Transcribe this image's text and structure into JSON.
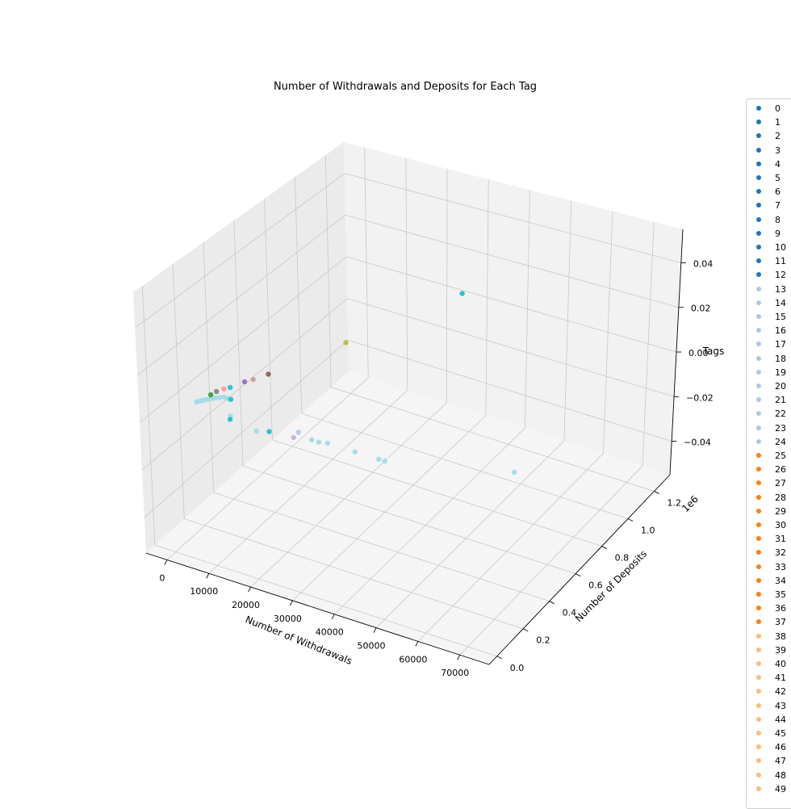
{
  "chart_data": {
    "type": "scatter",
    "projection": "3d",
    "title": "Number of Withdrawals and Deposits for Each Tag",
    "xlabel": "Number of Withdrawals",
    "ylabel": "Number of Deposits",
    "zlabel": "Tags",
    "y_offset_label": "1e6",
    "xlim": [
      -5000,
      77000
    ],
    "ylim": [
      -0.06,
      1.32
    ],
    "zlim": [
      -0.055,
      0.055
    ],
    "x_ticks": [
      "0",
      "10000",
      "20000",
      "30000",
      "40000",
      "50000",
      "60000",
      "70000"
    ],
    "y_ticks": [
      "0.0",
      "0.2",
      "0.4",
      "0.6",
      "0.8",
      "1.0",
      "1.2"
    ],
    "z_ticks": [
      "0.04",
      "0.02",
      "0.00",
      "−0.02",
      "−0.04"
    ],
    "grid": true,
    "legend_position": "right",
    "legend": {
      "labels": [
        "0",
        "1",
        "2",
        "3",
        "4",
        "5",
        "6",
        "7",
        "8",
        "9",
        "10",
        "11",
        "12",
        "13",
        "14",
        "15",
        "16",
        "17",
        "18",
        "19",
        "20",
        "21",
        "22",
        "23",
        "24",
        "25",
        "26",
        "27",
        "28",
        "29",
        "30",
        "31",
        "32",
        "33",
        "34",
        "35",
        "36",
        "37",
        "38",
        "39",
        "40",
        "41",
        "42",
        "43",
        "44",
        "45",
        "46",
        "47",
        "48",
        "49"
      ],
      "colors": [
        "#1f77b4",
        "#1f77b4",
        "#1f77b4",
        "#1f77b4",
        "#1f77b4",
        "#1f77b4",
        "#1f77b4",
        "#1f77b4",
        "#1f77b4",
        "#1f77b4",
        "#1f77b4",
        "#1f77b4",
        "#1f77b4",
        "#aec7e8",
        "#aec7e8",
        "#aec7e8",
        "#aec7e8",
        "#aec7e8",
        "#aec7e8",
        "#aec7e8",
        "#aec7e8",
        "#aec7e8",
        "#aec7e8",
        "#aec7e8",
        "#aec7e8",
        "#ff7f0e",
        "#ff7f0e",
        "#ff7f0e",
        "#ff7f0e",
        "#ff7f0e",
        "#ff7f0e",
        "#ff7f0e",
        "#ff7f0e",
        "#ff7f0e",
        "#ff7f0e",
        "#ff7f0e",
        "#ff7f0e",
        "#ff7f0e",
        "#ffbb78",
        "#ffbb78",
        "#ffbb78",
        "#ffbb78",
        "#ffbb78",
        "#ffbb78",
        "#ffbb78",
        "#ffbb78",
        "#ffbb78",
        "#ffbb78",
        "#ffbb78",
        "#ffbb78"
      ]
    },
    "points": [
      {
        "x": 300,
        "y": 0.17,
        "z": 0,
        "color": "#9edae5"
      },
      {
        "x": 600,
        "y": 0.18,
        "z": 0,
        "color": "#9edae5"
      },
      {
        "x": 900,
        "y": 0.19,
        "z": 0,
        "color": "#9edae5"
      },
      {
        "x": 1300,
        "y": 0.2,
        "z": 0,
        "color": "#9edae5"
      },
      {
        "x": 1700,
        "y": 0.21,
        "z": 0,
        "color": "#9edae5"
      },
      {
        "x": 2200,
        "y": 0.22,
        "z": 0,
        "color": "#9edae5"
      },
      {
        "x": 2700,
        "y": 0.23,
        "z": 0,
        "color": "#9edae5"
      },
      {
        "x": 3300,
        "y": 0.24,
        "z": 0,
        "color": "#9edae5"
      },
      {
        "x": 4000,
        "y": 0.25,
        "z": 0,
        "color": "#9edae5"
      },
      {
        "x": 4800,
        "y": 0.25,
        "z": 0,
        "color": "#9edae5"
      },
      {
        "x": 5600,
        "y": 0.25,
        "z": 0,
        "color": "#17becf"
      },
      {
        "x": 1200,
        "y": 0.24,
        "z": 0,
        "color": "#2ca02c"
      },
      {
        "x": 1500,
        "y": 0.27,
        "z": 0,
        "color": "#7f7f7f"
      },
      {
        "x": 2200,
        "y": 0.3,
        "z": 0,
        "color": "#ff9896"
      },
      {
        "x": 3000,
        "y": 0.32,
        "z": 0,
        "color": "#17becf"
      },
      {
        "x": 4300,
        "y": 0.38,
        "z": 0,
        "color": "#9467bd"
      },
      {
        "x": 5300,
        "y": 0.41,
        "z": 0,
        "color": "#c49c94"
      },
      {
        "x": 6800,
        "y": 0.47,
        "z": 0,
        "color": "#8c564b"
      },
      {
        "x": 13800,
        "y": 0.8,
        "z": 0,
        "color": "#bcbd22"
      },
      {
        "x": 24500,
        "y": 1.3,
        "z": 0,
        "color": "#17becf"
      },
      {
        "x": 9000,
        "y": 0.15,
        "z": 0,
        "color": "#9edae5"
      },
      {
        "x": 9600,
        "y": 0.13,
        "z": 0,
        "color": "#17becf"
      },
      {
        "x": 16500,
        "y": 0.11,
        "z": 0,
        "color": "#9edae5"
      },
      {
        "x": 18800,
        "y": 0.13,
        "z": 0,
        "color": "#17becf"
      },
      {
        "x": 24000,
        "y": 0.18,
        "z": 0,
        "color": "#aec7e8"
      },
      {
        "x": 24200,
        "y": 0.14,
        "z": 0,
        "color": "#c5b0d5"
      },
      {
        "x": 27800,
        "y": 0.16,
        "z": 0,
        "color": "#9edae5"
      },
      {
        "x": 29500,
        "y": 0.16,
        "z": 0,
        "color": "#9edae5"
      },
      {
        "x": 31200,
        "y": 0.17,
        "z": 0,
        "color": "#9edae5"
      },
      {
        "x": 37700,
        "y": 0.17,
        "z": 0,
        "color": "#9edae5"
      },
      {
        "x": 43300,
        "y": 0.17,
        "z": 0,
        "color": "#9edae5"
      },
      {
        "x": 44700,
        "y": 0.17,
        "z": 0,
        "color": "#9edae5"
      },
      {
        "x": 69800,
        "y": 0.34,
        "z": 0,
        "color": "#9edae5"
      }
    ]
  }
}
